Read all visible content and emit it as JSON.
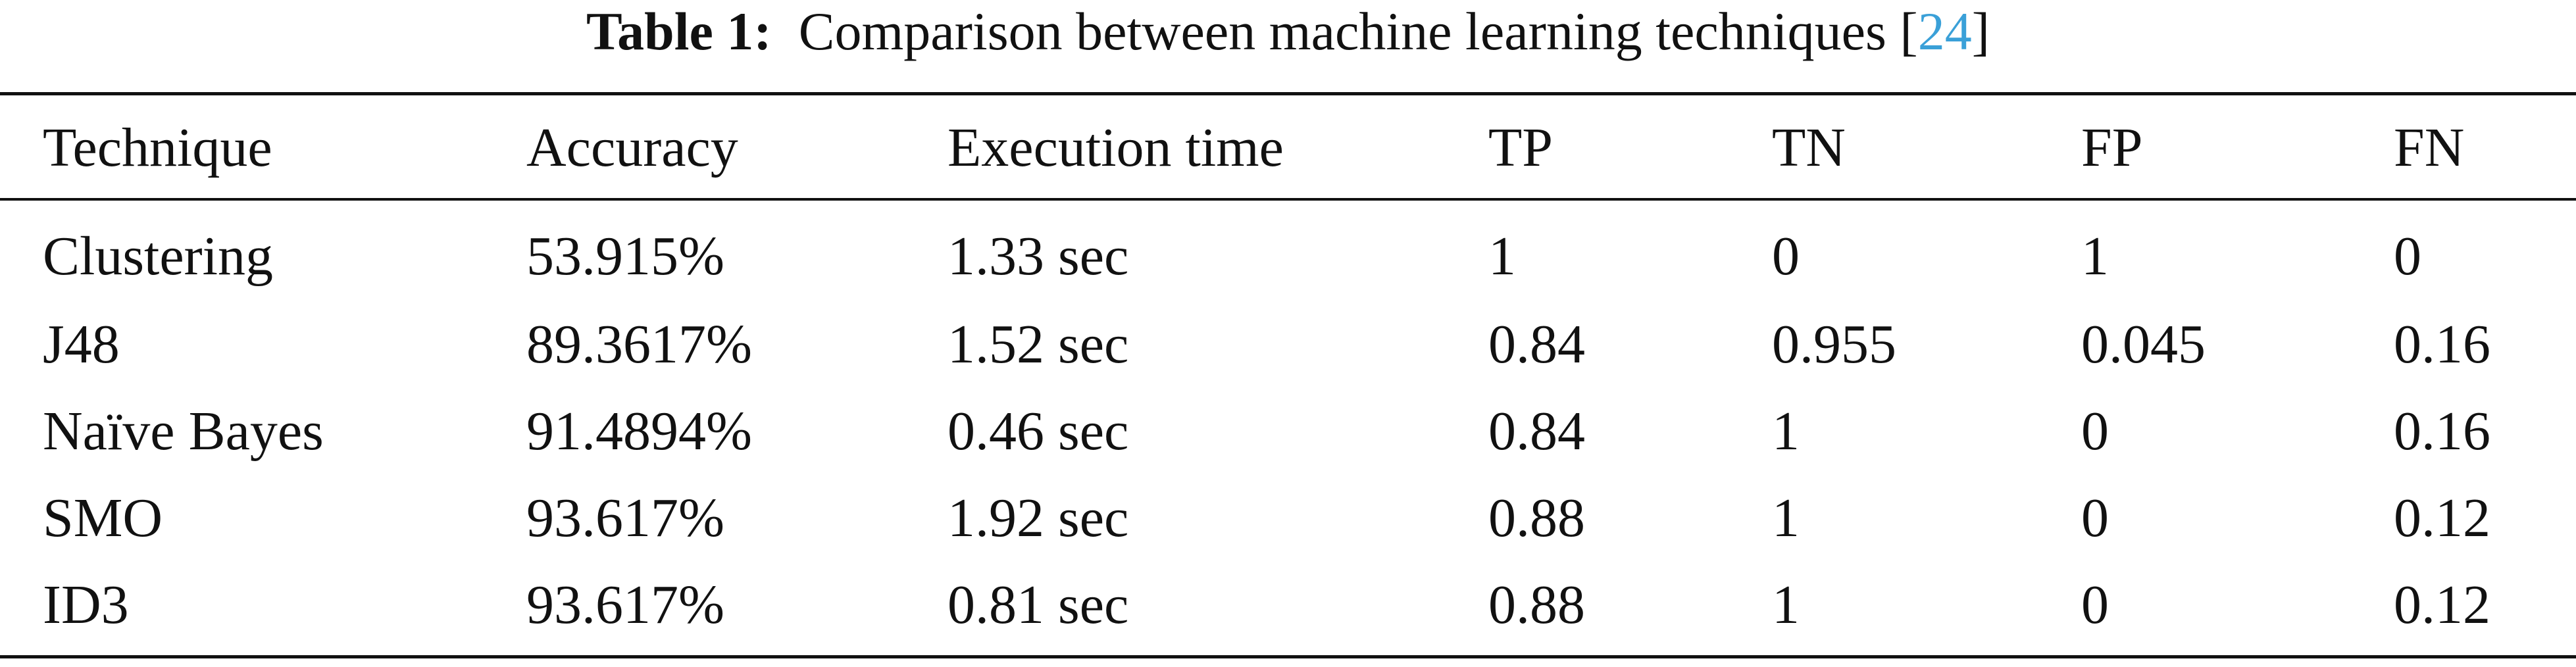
{
  "table": {
    "caption": {
      "label": "Table 1:",
      "text": "Comparison between machine learning techniques [",
      "citation": "24",
      "suffix": "]"
    },
    "headers": [
      "Technique",
      "Accuracy",
      "Execution time",
      "TP",
      "TN",
      "FP",
      "FN"
    ],
    "rows": [
      [
        "Clustering",
        "53.915%",
        "1.33 sec",
        "1",
        "0",
        "1",
        "0"
      ],
      [
        "J48",
        "89.3617%",
        "1.52 sec",
        "0.84",
        "0.955",
        "0.045",
        "0.16"
      ],
      [
        "Naïve Bayes",
        "91.4894%",
        "0.46 sec",
        "0.84",
        "1",
        "0",
        "0.16"
      ],
      [
        "SMO",
        "93.617%",
        "1.92 sec",
        "0.88",
        "1",
        "0",
        "0.12"
      ],
      [
        "ID3",
        "93.617%",
        "0.81 sec",
        "0.88",
        "1",
        "0",
        "0.12"
      ]
    ]
  }
}
